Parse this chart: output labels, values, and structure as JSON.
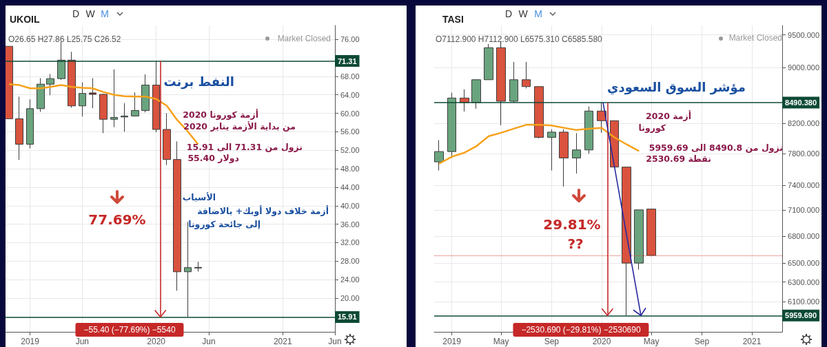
{
  "chart_data": [
    {
      "type": "candlestick",
      "title": "UKOIL",
      "subtitle": "O26.65 H27.86 L25.75 C26.52",
      "x": [
        "2018-11",
        "2018-12",
        "2019-01",
        "2019-02",
        "2019-03",
        "2019-04",
        "2019-05",
        "2019-06",
        "2019-07",
        "2019-08",
        "2019-09",
        "2019-10",
        "2019-11",
        "2019-12",
        "2020-01",
        "2020-02",
        "2020-03",
        "2020-04",
        "2020-05"
      ],
      "ohlc": [
        [
          74.5,
          74.5,
          58.8,
          58.8
        ],
        [
          58.8,
          63.6,
          49.9,
          53.3
        ],
        [
          53.3,
          63.0,
          52.4,
          61.0
        ],
        [
          61.0,
          67.6,
          60.3,
          66.3
        ],
        [
          66.3,
          68.5,
          63.9,
          67.5
        ],
        [
          67.5,
          75.5,
          67.2,
          71.5
        ],
        [
          71.5,
          73.3,
          61.2,
          61.6
        ],
        [
          61.6,
          66.7,
          59.3,
          64.3
        ],
        [
          64.4,
          67.6,
          61.1,
          64.1
        ],
        [
          64.1,
          64.2,
          55.7,
          58.7
        ],
        [
          58.7,
          69.5,
          57.0,
          59.1
        ],
        [
          59.2,
          62.2,
          56.0,
          59.4
        ],
        [
          59.4,
          64.5,
          59.3,
          60.6
        ],
        [
          60.6,
          68.4,
          60.2,
          66.1
        ],
        [
          66.1,
          71.31,
          55.9,
          56.5
        ],
        [
          56.5,
          60.0,
          48.8,
          50.0
        ],
        [
          50.0,
          53.9,
          21.6,
          25.7
        ],
        [
          25.7,
          36.5,
          15.91,
          26.6
        ],
        [
          26.65,
          27.86,
          25.75,
          26.52
        ]
      ],
      "colors": [
        "#d9533e",
        "#d9533e",
        "#6aa47f",
        "#6aa47f",
        "#6aa47f",
        "#6aa47f",
        "#d9533e",
        "#6aa47f",
        "#7a2a1a",
        "#d9533e",
        "#6aa47f",
        "#6aa47f",
        "#6aa47f",
        "#6aa47f",
        "#d9533e",
        "#d9533e",
        "#d9533e",
        "#6aa47f",
        "#7a2a1a"
      ],
      "series": [
        {
          "type": "line",
          "color": "#f7a11a",
          "x": [
            "2018-11",
            "2018-12",
            "2019-01",
            "2019-02",
            "2019-03",
            "2019-04",
            "2019-05",
            "2019-06",
            "2019-07",
            "2019-08",
            "2019-09",
            "2019-10",
            "2019-11",
            "2019-12",
            "2020-01",
            "2020-02",
            "2020-03",
            "2020-04",
            "2020-05"
          ],
          "values": [
            66.3,
            66.1,
            65.4,
            65.4,
            65.7,
            66.1,
            65.7,
            65.5,
            65.4,
            64.6,
            64.0,
            63.7,
            63.6,
            63.6,
            63.1,
            61.6,
            58.6,
            56.1,
            53.3
          ]
        }
      ],
      "marker": "none",
      "xlim": [
        "2018-10-22",
        "2021-06-01"
      ],
      "xticks": [
        {
          "value": "2019-01",
          "label": "2019"
        },
        {
          "value": "2019-06",
          "label": "Jun"
        },
        {
          "value": "2020-01",
          "label": "2020"
        },
        {
          "value": "2020-06",
          "label": "Jun"
        },
        {
          "value": "2021-01",
          "label": "2021"
        },
        {
          "value": "2021-06",
          "label": "Jun"
        }
      ],
      "ylim": [
        12.7,
        79
      ],
      "yticks": [
        {
          "value": 20,
          "label": "20.00"
        },
        {
          "value": 24,
          "label": "24.00"
        },
        {
          "value": 28,
          "label": "28.00"
        },
        {
          "value": 32,
          "label": "32.00"
        },
        {
          "value": 36,
          "label": "36.00"
        },
        {
          "value": 40,
          "label": "40.00"
        },
        {
          "value": 44,
          "label": "44.00"
        },
        {
          "value": 48,
          "label": "48.00"
        },
        {
          "value": 52,
          "label": "52.00"
        },
        {
          "value": 56,
          "label": "56.00"
        },
        {
          "value": 60,
          "label": "60.00"
        },
        {
          "value": 64,
          "label": "64.00"
        },
        {
          "value": 68,
          "label": "68.00"
        },
        {
          "value": 76,
          "label": "76.00"
        }
      ],
      "grid": true,
      "ref_lines": [
        {
          "axis": "y",
          "value": 71.31,
          "label": "71.31",
          "color": "#0d4a36"
        },
        {
          "axis": "y",
          "value": 15.91,
          "label": "15.91",
          "color": "#0d4a36"
        },
        {
          "axis": "x",
          "value": "2020-01-13",
          "label": null,
          "color": "#c62828"
        }
      ],
      "annotations": [
        "D",
        "W",
        "M",
        "Market Closed",
        "النفط برنت",
        "أزمة كورونا 2020",
        "من بداية الأزمة يناير 2020",
        "نزول من 71.31 الى 15.91",
        "دولار 55.40",
        "الأسباب",
        "أزمة خلاف دولا أوبك+ بالاضافة",
        "إلى جائحة كورونا",
        "77.69%",
        "−55.40 (−77.69%) −5540"
      ]
    },
    {
      "type": "candlestick",
      "title": "TASI",
      "subtitle": "O7112.900 H7112.900 L6575.310 C6585.580",
      "x": [
        "2018-12",
        "2019-01",
        "2019-02",
        "2019-03",
        "2019-04",
        "2019-05",
        "2019-06",
        "2019-07",
        "2019-08",
        "2019-09",
        "2019-10",
        "2019-11",
        "2019-12",
        "2020-01",
        "2020-02",
        "2020-03",
        "2020-04",
        "2020-05"
      ],
      "ohlc": [
        [
          7693,
          7976,
          7584,
          7826
        ],
        [
          7826,
          8630,
          7743,
          8554
        ],
        [
          8554,
          8679,
          8365,
          8490
        ],
        [
          8490,
          8818,
          8403,
          8818
        ],
        [
          8818,
          9358,
          8818,
          9300
        ],
        [
          9300,
          9400,
          8177,
          8509
        ],
        [
          8509,
          9084,
          8490,
          8818
        ],
        [
          8818,
          9084,
          8692,
          8718
        ],
        [
          8718,
          8718,
          8000,
          8013
        ],
        [
          8013,
          8121,
          7584,
          8083
        ],
        [
          8083,
          8121,
          7384,
          7743
        ],
        [
          7743,
          8068,
          7546,
          7847
        ],
        [
          7847,
          8435,
          7797,
          8371
        ],
        [
          8371,
          8490.38,
          8074,
          8238
        ],
        [
          8238,
          8238,
          7627,
          7627
        ],
        [
          7627,
          7627,
          5959.69,
          6502
        ],
        [
          6502,
          7103,
          6432,
          7103
        ],
        [
          7112.9,
          7112.9,
          6575.31,
          6585.58
        ]
      ],
      "colors": [
        "#6aa47f",
        "#6aa47f",
        "#d9533e",
        "#6aa47f",
        "#6aa47f",
        "#d9533e",
        "#6aa47f",
        "#d9533e",
        "#d9533e",
        "#6aa47f",
        "#d9533e",
        "#6aa47f",
        "#6aa47f",
        "#d9533e",
        "#d9533e",
        "#d9533e",
        "#6aa47f",
        "#d9533e"
      ],
      "series": [
        {
          "type": "line",
          "color": "#f7a11a",
          "x": [
            "2018-12",
            "2019-01",
            "2019-02",
            "2019-03",
            "2019-04",
            "2019-05",
            "2019-06",
            "2019-07",
            "2019-08",
            "2019-09",
            "2019-10",
            "2019-11",
            "2019-12",
            "2020-01",
            "2020-02",
            "2020-03",
            "2020-04"
          ],
          "values": [
            7670,
            7759,
            7812,
            7893,
            8029,
            8074,
            8129,
            8181,
            8181,
            8172,
            8141,
            8111,
            8129,
            8141,
            8013,
            7922,
            7832
          ]
        }
      ],
      "marker": "none",
      "log": "y",
      "xlim": [
        "2018-11-19",
        "2021-03-16"
      ],
      "xticks": [
        {
          "value": "2019-01",
          "label": "2019"
        },
        {
          "value": "2019-05",
          "label": "May"
        },
        {
          "value": "2019-09",
          "label": "Sep"
        },
        {
          "value": "2020-01",
          "label": "2020"
        },
        {
          "value": "2020-05",
          "label": "May"
        },
        {
          "value": "2020-09",
          "label": "Sep"
        },
        {
          "value": "2021-01",
          "label": "2021"
        }
      ],
      "ylim": [
        5800,
        9650
      ],
      "yticks": [
        {
          "value": 6100,
          "label": "6100.000"
        },
        {
          "value": 6300,
          "label": "6300.000"
        },
        {
          "value": 6500,
          "label": "6500.000"
        },
        {
          "value": 6800,
          "label": "6800.000"
        },
        {
          "value": 7100,
          "label": "7100.000"
        },
        {
          "value": 7400,
          "label": "7400.000"
        },
        {
          "value": 7800,
          "label": "7800.000"
        },
        {
          "value": 8200,
          "label": "8200.000"
        },
        {
          "value": 9000,
          "label": "9000.000"
        },
        {
          "value": 9500,
          "label": "9500.000"
        }
      ],
      "grid": true,
      "ref_lines": [
        {
          "axis": "y",
          "value": 8490.38,
          "label": "8490.380",
          "color": "#0d4a36"
        },
        {
          "axis": "y",
          "value": 5959.69,
          "label": "5959.690",
          "color": "#0d4a36"
        },
        {
          "axis": "y",
          "value": 6585.58,
          "label": null,
          "color": "#e0483a",
          "line_style": "dotted"
        },
        {
          "axis": "x",
          "value": "2020-01-15",
          "label": null,
          "color": "#c62828"
        }
      ],
      "annotations": [
        "D",
        "W",
        "M",
        "Market Closed",
        "مؤشر السوق السعودي",
        "أزمة 2020",
        "كورونا",
        "نزول من 8490.8 الى 5959.69",
        "نقطة 2530.69",
        "29.81%",
        "??",
        "−2530.690 (−29.81%) −2530690"
      ]
    }
  ]
}
